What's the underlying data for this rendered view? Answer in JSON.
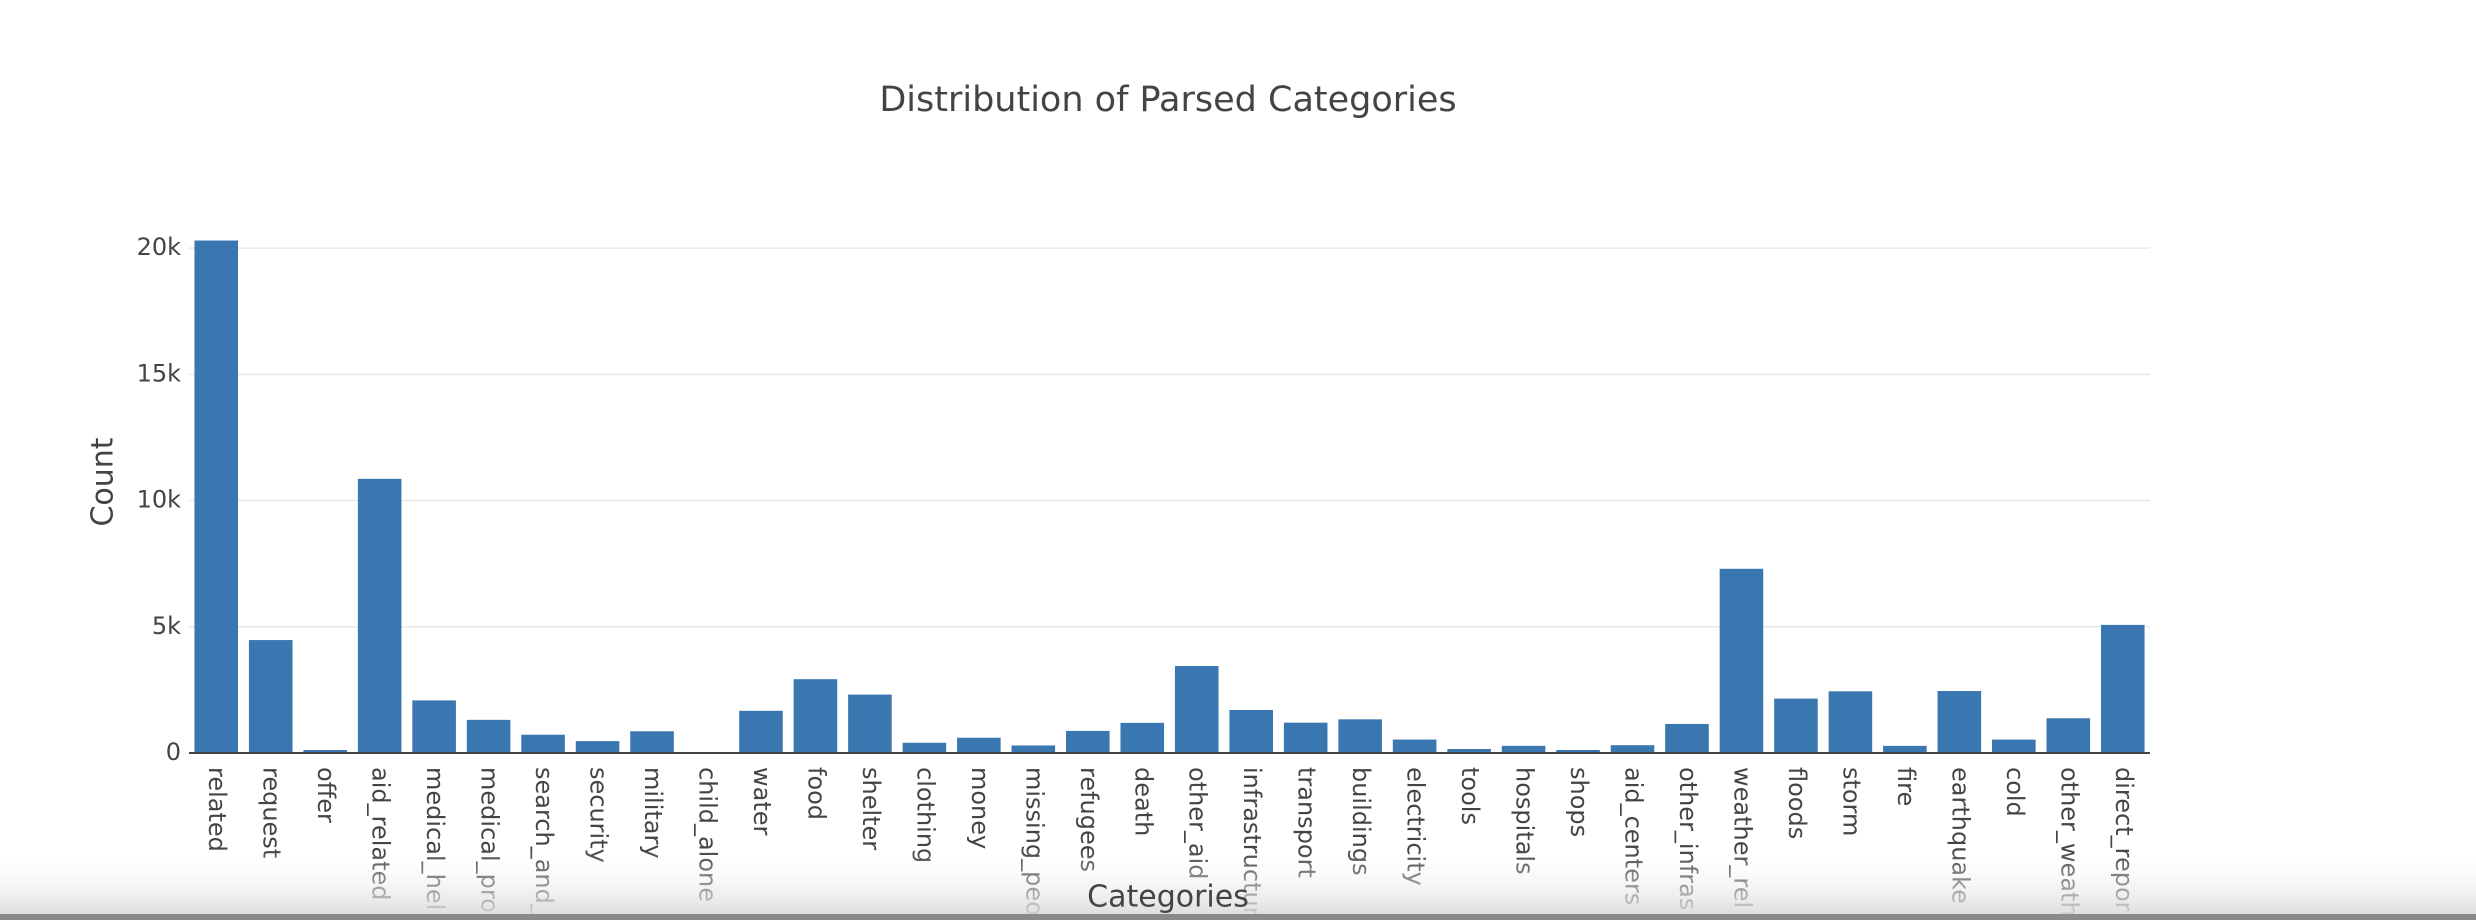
{
  "chart_data": {
    "type": "bar",
    "title": "Distribution of Parsed Categories",
    "x_label": "Categories",
    "y_label": "Count",
    "categories": [
      "related",
      "request",
      "offer",
      "aid_related",
      "medical_hel",
      "medical_pro",
      "search_and_",
      "security",
      "military",
      "child_alone",
      "water",
      "food",
      "shelter",
      "clothing",
      "money",
      "missing_peo",
      "refugees",
      "death",
      "other_aid",
      "infrastructur",
      "transport",
      "buildings",
      "electricity",
      "tools",
      "hospitals",
      "shops",
      "aid_centers",
      "other_infras",
      "weather_rel",
      "floods",
      "storm",
      "fire",
      "earthquake",
      "cold",
      "other_weath",
      "direct_repor"
    ],
    "values": [
      20300,
      4474,
      118,
      10860,
      2084,
      1313,
      724,
      471,
      860,
      0,
      1672,
      2923,
      2314,
      405,
      604,
      298,
      875,
      1194,
      3446,
      1705,
      1201,
      1333,
      532,
      159,
      283,
      120,
      309,
      1151,
      7297,
      2155,
      2443,
      282,
      2455,
      530,
      1376,
      5075
    ],
    "color": "#3a76af",
    "ylim": [
      0,
      20400
    ],
    "yticks": [
      0,
      {
        "value": 5000,
        "label": "5k"
      },
      {
        "value": 10000,
        "label": "10k"
      },
      {
        "value": 15000,
        "label": "15k"
      },
      {
        "value": 20000,
        "label": "20k"
      }
    ],
    "grid": true
  }
}
